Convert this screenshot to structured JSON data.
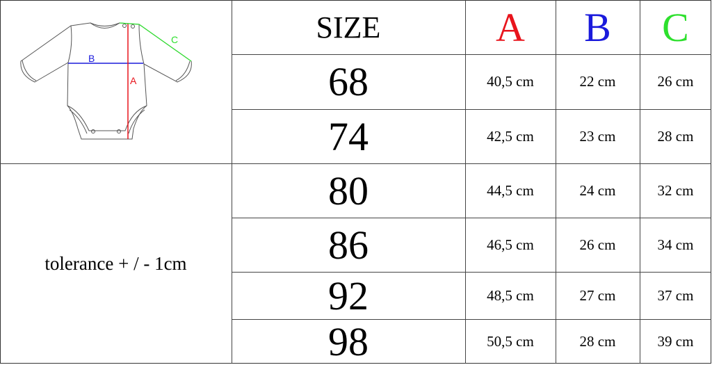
{
  "header": {
    "size_label": "SIZE",
    "col_a": "A",
    "col_b": "B",
    "col_c": "C"
  },
  "colors": {
    "a": "#e8141c",
    "b": "#1a1adc",
    "c": "#2ee02e"
  },
  "illustration": {
    "icon": "bodysuit-diagram",
    "label_a": "A",
    "label_b": "B",
    "label_c": "C"
  },
  "tolerance": "tolerance + / - 1cm",
  "rows": [
    {
      "size": "68",
      "a": "40,5 cm",
      "b": "22 cm",
      "c": "26 cm"
    },
    {
      "size": "74",
      "a": "42,5 cm",
      "b": "23 cm",
      "c": "28 cm"
    },
    {
      "size": "80",
      "a": "44,5 cm",
      "b": "24 cm",
      "c": "32 cm"
    },
    {
      "size": "86",
      "a": "46,5 cm",
      "b": "26 cm",
      "c": "34 cm"
    },
    {
      "size": "92",
      "a": "48,5 cm",
      "b": "27 cm",
      "c": "37 cm"
    },
    {
      "size": "98",
      "a": "50,5 cm",
      "b": "28 cm",
      "c": "39 cm"
    }
  ]
}
